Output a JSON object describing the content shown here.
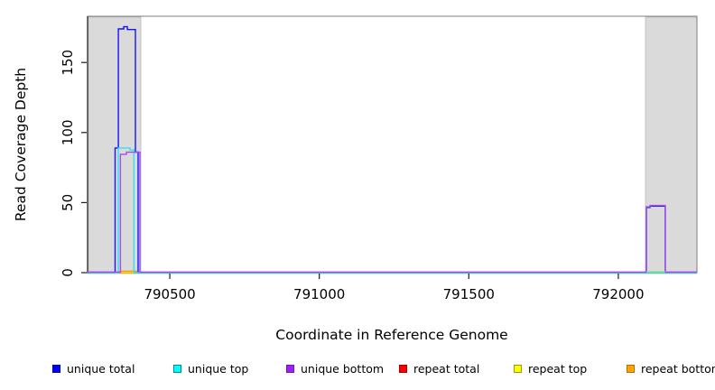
{
  "chart_data": {
    "type": "line",
    "title": "",
    "xlabel": "Coordinate in Reference Genome",
    "ylabel": "Read Coverage Depth",
    "xlim": [
      790225,
      792263
    ],
    "ylim": [
      0,
      183
    ],
    "x_ticks": [
      "790500",
      "791000",
      "791500",
      "792000"
    ],
    "x_tick_values": [
      790500,
      791000,
      791500,
      792000
    ],
    "y_ticks": [
      "0",
      "50",
      "100",
      "150"
    ],
    "y_tick_values": [
      0,
      50,
      100,
      150
    ],
    "grid": false,
    "legend_position": "bottom",
    "masked_regions": [
      {
        "x0": 790228,
        "x1": 790403
      },
      {
        "x0": 792091,
        "x1": 792263
      }
    ],
    "series": [
      {
        "name": "unique total",
        "line_color": "#1414FF",
        "points": [
          [
            790225,
            0
          ],
          [
            790317,
            0
          ],
          [
            790317,
            89
          ],
          [
            790328,
            89
          ],
          [
            790328,
            174
          ],
          [
            790346,
            174
          ],
          [
            790346,
            175.5
          ],
          [
            790358,
            175.5
          ],
          [
            790358,
            173.5
          ],
          [
            790385,
            173.5
          ],
          [
            790385,
            86
          ],
          [
            790394,
            86
          ],
          [
            790394,
            0
          ],
          [
            792094,
            0
          ],
          [
            792094,
            46.5
          ],
          [
            792106,
            46.5
          ],
          [
            792106,
            47.5
          ],
          [
            792157,
            47.5
          ],
          [
            792157,
            0
          ],
          [
            792263,
            0
          ]
        ]
      },
      {
        "name": "unique top",
        "line_color": "#2EE4EE",
        "points": [
          [
            790225,
            0
          ],
          [
            790328,
            0
          ],
          [
            790328,
            89
          ],
          [
            790367,
            89
          ],
          [
            790367,
            87.5
          ],
          [
            790380,
            87.5
          ],
          [
            790380,
            0
          ],
          [
            792263,
            0
          ]
        ]
      },
      {
        "name": "unique bottom",
        "line_color": "#A64CE8",
        "points": [
          [
            790225,
            0
          ],
          [
            790335,
            0
          ],
          [
            790335,
            84
          ],
          [
            790355,
            84
          ],
          [
            790355,
            85.5
          ],
          [
            790400,
            85.5
          ],
          [
            790400,
            0
          ],
          [
            792094,
            0
          ],
          [
            792094,
            46.5
          ],
          [
            792106,
            46.5
          ],
          [
            792106,
            47.5
          ],
          [
            792157,
            47.5
          ],
          [
            792157,
            0
          ],
          [
            792263,
            0
          ]
        ]
      },
      {
        "name": "repeat total",
        "line_color": "#FF0000",
        "points": [
          [
            790225,
            0
          ],
          [
            792263,
            0
          ]
        ]
      },
      {
        "name": "repeat top",
        "line_color": "#FFFF00",
        "points": [
          [
            790225,
            0
          ],
          [
            792263,
            0
          ]
        ]
      },
      {
        "name": "repeat bottom",
        "line_color": "#FF9415",
        "points": [
          [
            790225,
            0
          ],
          [
            790335,
            0
          ],
          [
            790335,
            1
          ],
          [
            790394,
            1
          ],
          [
            790394,
            0
          ],
          [
            792263,
            0
          ]
        ]
      }
    ],
    "overlap_artifact": {
      "x0": 792094,
      "x1": 792157,
      "depth": 0,
      "color": "#8CE68C"
    }
  },
  "legend": {
    "items": [
      {
        "label": "unique total",
        "fill": "#0000FF",
        "border": "#000090"
      },
      {
        "label": "unique top",
        "fill": "#00FFFF",
        "border": "#008B8B"
      },
      {
        "label": "unique bottom",
        "fill": "#A020F0",
        "border": "#7A0FC0"
      },
      {
        "label": "repeat total",
        "fill": "#FF0000",
        "border": "#A00000"
      },
      {
        "label": "repeat top",
        "fill": "#FFFF00",
        "border": "#9A9A00"
      },
      {
        "label": "repeat bottom",
        "fill": "#FFA500",
        "border": "#B06F00"
      }
    ]
  },
  "colors": {
    "masked_region_fill": "#DADADA",
    "masked_region_edge": "#C2C2C2",
    "plot_border": "#7E7E7E",
    "axis": "#1A1A1A"
  }
}
